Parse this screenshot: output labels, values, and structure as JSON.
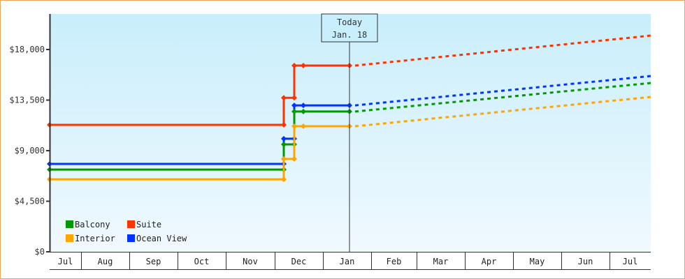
{
  "chart_data": {
    "type": "line",
    "title": "",
    "xlabel": "",
    "ylabel": "",
    "ylim": [
      0,
      20250
    ],
    "y_ticks": [
      "$0",
      "$4,500",
      "$9,000",
      "$13,500",
      "$18,000"
    ],
    "y_tick_values": [
      0,
      4500,
      9000,
      13500,
      18000
    ],
    "x_ticks": [
      "Jul",
      "Aug",
      "Sep",
      "Oct",
      "Nov",
      "Dec",
      "Jan",
      "Feb",
      "Mar",
      "Apr",
      "May",
      "Jun",
      "Jul"
    ],
    "annotation": {
      "line1": "Today",
      "line2": "Jan. 18"
    },
    "legend": [
      {
        "name": "Balcony",
        "color": "#009900"
      },
      {
        "name": "Suite",
        "color": "#ff3300"
      },
      {
        "name": "Interior",
        "color": "#ffa500"
      },
      {
        "name": "Ocean View",
        "color": "#0033ff"
      }
    ],
    "series": [
      {
        "name": "Suite",
        "color": "#ff3300",
        "points": [
          [
            "Jul 1",
            11300
          ],
          [
            "Dec 1",
            11300
          ],
          [
            "Dec 1",
            13700
          ],
          [
            "Dec 7",
            13700
          ],
          [
            "Dec 7",
            16570
          ],
          [
            "Dec 12",
            16570
          ],
          [
            "Jan 18",
            16570
          ]
        ],
        "projection": [
          [
            "Jan 18",
            16570
          ],
          [
            "Jul end",
            19240
          ]
        ]
      },
      {
        "name": "Ocean View",
        "color": "#0033ff",
        "points": [
          [
            "Jul 1",
            7820
          ],
          [
            "Dec 1",
            7820
          ],
          [
            "Dec 1",
            10060
          ],
          [
            "Dec 7",
            10060
          ],
          [
            "Dec 7",
            13030
          ],
          [
            "Dec 12",
            13030
          ],
          [
            "Jan 18",
            13030
          ]
        ],
        "projection": [
          [
            "Jan 18",
            13030
          ],
          [
            "Jul end",
            15640
          ]
        ]
      },
      {
        "name": "Balcony",
        "color": "#009900",
        "points": [
          [
            "Jul 1",
            7320
          ],
          [
            "Dec 1",
            7320
          ],
          [
            "Dec 1",
            9560
          ],
          [
            "Dec 7",
            9560
          ],
          [
            "Dec 7",
            12480
          ],
          [
            "Dec 12",
            12480
          ],
          [
            "Jan 18",
            12480
          ]
        ],
        "projection": [
          [
            "Jan 18",
            12480
          ],
          [
            "Jul end",
            15020
          ]
        ]
      },
      {
        "name": "Interior",
        "color": "#ffa500",
        "points": [
          [
            "Jul 1",
            6450
          ],
          [
            "Dec 1",
            6450
          ],
          [
            "Dec 1",
            8260
          ],
          [
            "Dec 7",
            8260
          ],
          [
            "Dec 7",
            11170
          ],
          [
            "Dec 12",
            11170
          ],
          [
            "Jan 18",
            11170
          ]
        ],
        "projection": [
          [
            "Jan 18",
            11170
          ],
          [
            "Jul end",
            13780
          ]
        ]
      }
    ]
  }
}
